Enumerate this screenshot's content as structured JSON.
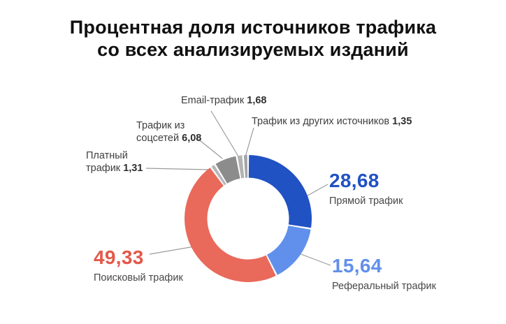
{
  "header": {
    "title_line1": "Процентная доля источников трафика",
    "title_line2": "со всех анализируемых изданий"
  },
  "chart_data": {
    "type": "donut",
    "title": "Процентная доля источников трафика со всех анализируемых изданий",
    "value_format": "percent, comma decimal separator",
    "legend_position": "callouts around donut",
    "slices": [
      {
        "id": "direct",
        "label": "Прямой трафик",
        "value": 28.68,
        "display": "28,68",
        "color": "#2152c3",
        "text_color": "#2152c3"
      },
      {
        "id": "referral",
        "label": "Реферальный трафик",
        "value": 15.64,
        "display": "15,64",
        "color": "#6190ec",
        "text_color": "#6190ec"
      },
      {
        "id": "search",
        "label": "Поисковый трафик",
        "value": 49.33,
        "display": "49,33",
        "color": "#e9695b",
        "text_color": "#e4584a"
      },
      {
        "id": "paid",
        "label": "Платный трафик",
        "value": 1.31,
        "display": "1,31",
        "color": "#b6b6ba"
      },
      {
        "id": "social",
        "label": "Трафик из соцсетей",
        "value": 6.08,
        "display": "6,08",
        "color": "#8c8c8c"
      },
      {
        "id": "email",
        "label": "Email-трафик",
        "value": 1.68,
        "display": "1,68",
        "color": "#b3b3b3"
      },
      {
        "id": "other",
        "label": "Трафик из других источников",
        "value": 1.35,
        "display": "1,35",
        "color": "#a4a4a8"
      }
    ]
  }
}
